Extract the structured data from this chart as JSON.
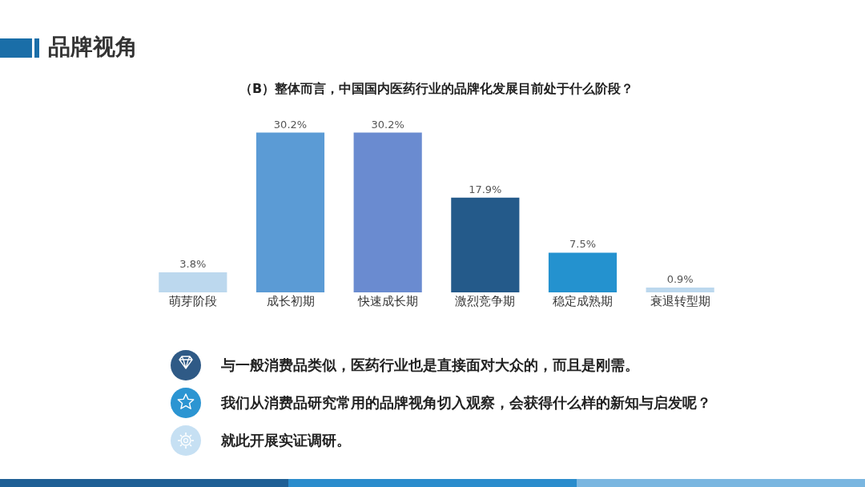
{
  "chart_data": {
    "type": "bar",
    "title": "品牌视角",
    "subtitle": "（B）整体而言，中国国内医药行业的品牌化发展目前处于什么阶段？",
    "categories": [
      "萌芽阶段",
      "成长初期",
      "快速成长期",
      "激烈竞争期",
      "稳定成熟期",
      "衰退转型期"
    ],
    "values": [
      3.8,
      30.2,
      30.2,
      17.9,
      7.5,
      0.9
    ],
    "colors": [
      "#bcd8ee",
      "#5b9bd5",
      "#6a8bd0",
      "#245a8a",
      "#2492cf",
      "#bcd8ee"
    ],
    "value_labels": [
      "3.8%",
      "30.2%",
      "30.2%",
      "17.9%",
      "7.5%",
      "0.9%"
    ],
    "grid": false,
    "legend": false,
    "annotations": [
      "与一般消费品类似，医药行业也是直接面对大众的，而且是刚需。",
      "我们从消费品研究常用的品牌视角切入观察，会获得什么样的新知与启发呢？",
      "就此开展实证调研。"
    ]
  }
}
